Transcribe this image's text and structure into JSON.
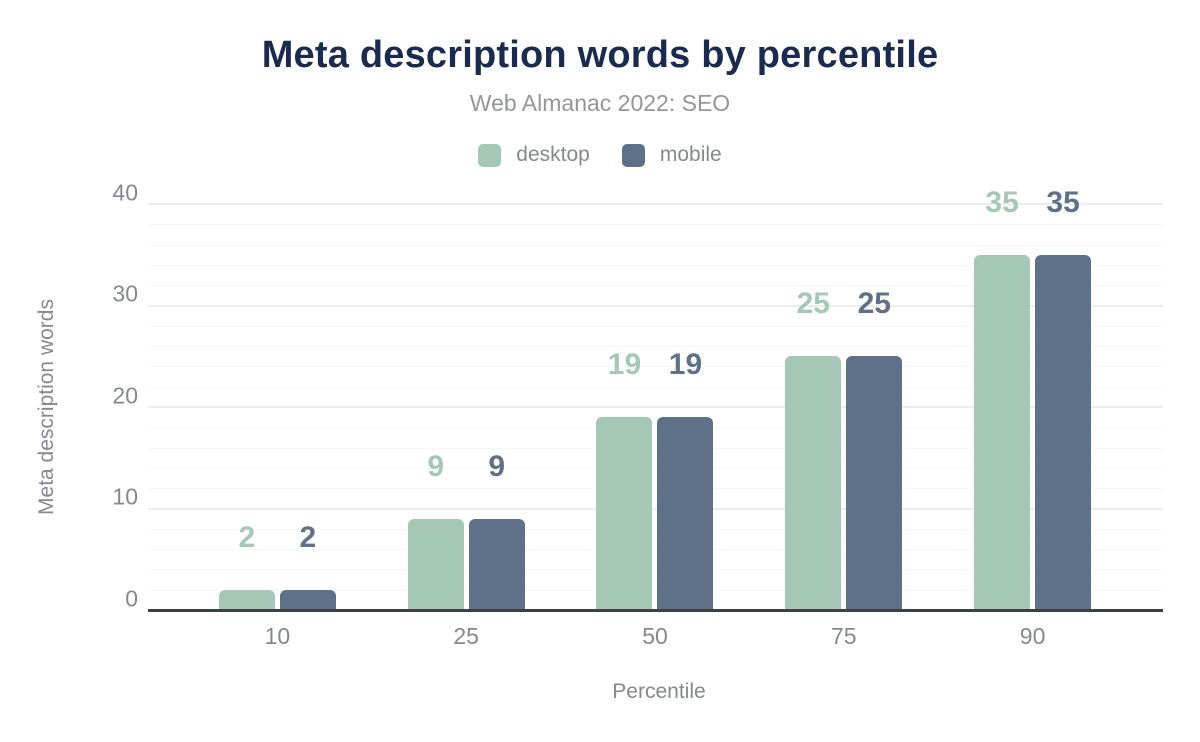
{
  "chart_data": {
    "type": "bar",
    "title": "Meta description words by percentile",
    "subtitle": "Web Almanac 2022: SEO",
    "xlabel": "Percentile",
    "ylabel": "Meta description words",
    "categories": [
      "10",
      "25",
      "50",
      "75",
      "90"
    ],
    "series": [
      {
        "name": "desktop",
        "color": "#a5c8b6",
        "values": [
          2,
          9,
          19,
          25,
          35
        ]
      },
      {
        "name": "mobile",
        "color": "#5e7189",
        "values": [
          2,
          9,
          19,
          25,
          35
        ]
      }
    ],
    "value_labels": {
      "desktop": [
        "2",
        "9",
        "19",
        "25",
        "35"
      ],
      "mobile": [
        "2",
        "9",
        "19",
        "25",
        "35"
      ]
    },
    "ylim": [
      0,
      40
    ],
    "y_major_ticks": [
      "0",
      "10",
      "20",
      "30",
      "40"
    ],
    "y_minor_step": 2,
    "grid": "on",
    "legend_position": "top"
  },
  "colors": {
    "title_text": "#1b2b4d",
    "muted_text": "#85888c",
    "subtitle_text": "#949699",
    "axis_line": "#3d4144",
    "grid_major": "#ececec",
    "grid_minor": "#f7f7f7",
    "background": "#ffffff"
  }
}
